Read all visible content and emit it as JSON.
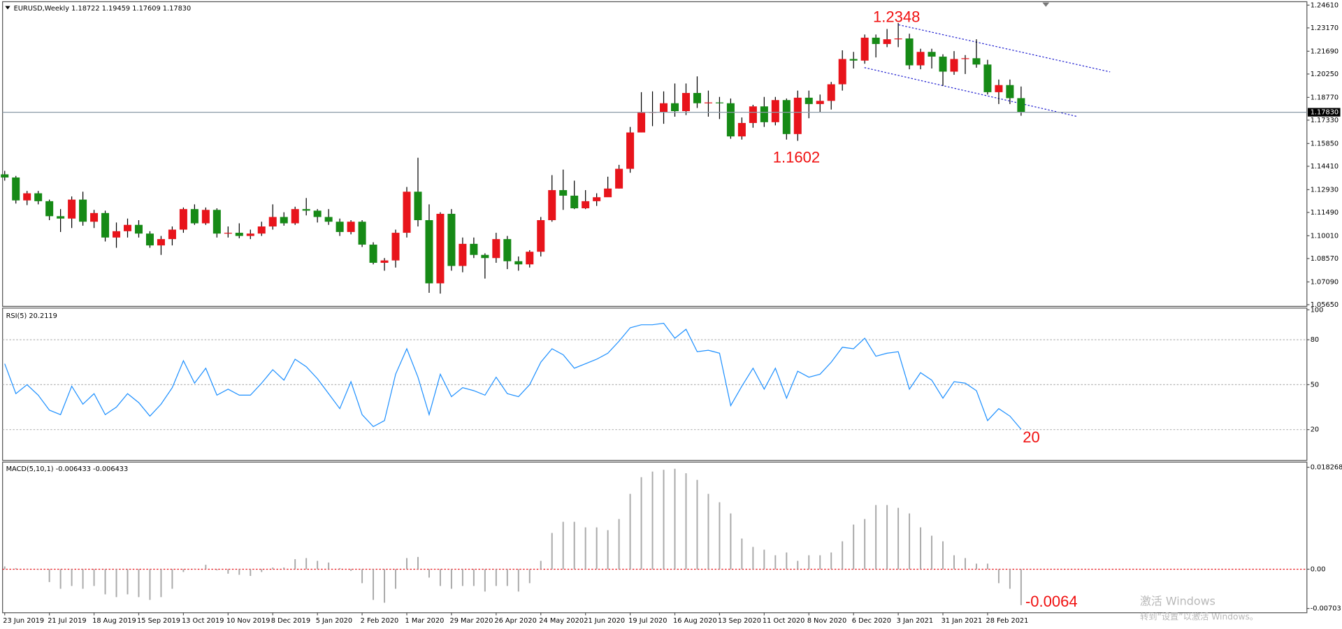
{
  "chart_data": [
    {
      "type": "candlestick",
      "title": "EURUSD,Weekly  1.18722 1.19459 1.17609 1.17830",
      "categories": [
        "23 Jun 2019",
        null,
        null,
        null,
        "21 Jul 2019",
        null,
        null,
        null,
        "18 Aug 2019",
        null,
        null,
        null,
        "15 Sep 2019",
        null,
        null,
        null,
        "13 Oct 2019",
        null,
        null,
        null,
        "10 Nov 2019",
        null,
        null,
        null,
        "8 Dec 2019",
        null,
        null,
        null,
        "5 Jan 2020",
        null,
        null,
        null,
        "2 Feb 2020",
        null,
        null,
        null,
        "1 Mar 2020",
        null,
        null,
        null,
        "29 Mar 2020",
        null,
        null,
        null,
        "26 Apr 2020",
        null,
        null,
        null,
        "24 May 2020",
        null,
        null,
        null,
        "21 Jun 2020",
        null,
        null,
        null,
        "19 Jul 2020",
        null,
        null,
        null,
        "16 Aug 2020",
        null,
        null,
        null,
        "13 Sep 2020",
        null,
        null,
        null,
        "11 Oct 2020",
        null,
        null,
        null,
        "8 Nov 2020",
        null,
        null,
        null,
        "6 Dec 2020",
        null,
        null,
        null,
        "3 Jan 2021",
        null,
        null,
        null,
        "31 Jan 2021",
        null,
        null,
        null,
        "28 Feb 2021",
        null,
        null,
        null
      ],
      "open": [
        1.139,
        1.137,
        1.1225,
        1.127,
        1.122,
        1.1125,
        1.111,
        1.123,
        1.109,
        1.1145,
        1.099,
        1.103,
        1.107,
        1.1015,
        1.094,
        1.098,
        1.104,
        1.117,
        1.108,
        1.1165,
        1.1015,
        1.102,
        1.1,
        1.1015,
        1.106,
        1.112,
        1.108,
        1.117,
        1.116,
        1.112,
        1.109,
        1.1025,
        1.109,
        1.0945,
        1.083,
        1.0845,
        1.102,
        1.128,
        1.11,
        1.07,
        1.114,
        1.081,
        1.095,
        1.088,
        1.086,
        1.098,
        1.084,
        1.082,
        1.09,
        1.11,
        1.129,
        1.1255,
        1.1175,
        1.122,
        1.1245,
        1.13,
        1.1425,
        1.1655,
        1.178,
        1.1785,
        1.184,
        1.179,
        1.1905,
        1.184,
        1.1845,
        1.184,
        1.163,
        1.1715,
        1.182,
        1.172,
        1.186,
        1.1645,
        1.1875,
        1.1835,
        1.1855,
        1.196,
        1.212,
        1.211,
        1.2255,
        1.2215,
        1.2245,
        1.225,
        1.208,
        1.2165,
        1.2135,
        1.204,
        1.212,
        1.2125,
        1.2085,
        1.191,
        1.1955,
        1.18722
      ],
      "high": [
        1.1412,
        1.138,
        1.1285,
        1.1285,
        1.123,
        1.117,
        1.125,
        1.128,
        1.1165,
        1.116,
        1.1085,
        1.111,
        1.11,
        1.103,
        1.1,
        1.106,
        1.118,
        1.12,
        1.118,
        1.1175,
        1.106,
        1.108,
        1.104,
        1.109,
        1.12,
        1.115,
        1.1185,
        1.124,
        1.117,
        1.117,
        1.111,
        1.11,
        1.11,
        1.096,
        1.086,
        1.104,
        1.131,
        1.1495,
        1.12,
        1.115,
        1.117,
        1.099,
        1.099,
        1.089,
        1.102,
        1.1,
        1.087,
        1.091,
        1.112,
        1.1385,
        1.142,
        1.135,
        1.129,
        1.127,
        1.1375,
        1.145,
        1.169,
        1.191,
        1.1915,
        1.1915,
        1.1965,
        1.1965,
        1.201,
        1.192,
        1.188,
        1.187,
        1.175,
        1.183,
        1.188,
        1.188,
        1.187,
        1.192,
        1.192,
        1.1895,
        1.1975,
        1.2175,
        1.2165,
        1.2275,
        1.2275,
        1.231,
        1.2348,
        1.228,
        1.2185,
        1.2185,
        1.215,
        1.217,
        1.2145,
        1.2245,
        1.2115,
        1.199,
        1.199,
        1.19459
      ],
      "low": [
        1.135,
        1.1205,
        1.1195,
        1.12,
        1.11,
        1.1025,
        1.105,
        1.1065,
        1.105,
        1.0965,
        1.0925,
        1.099,
        1.099,
        1.0925,
        1.088,
        1.094,
        1.102,
        1.107,
        1.107,
        1.099,
        1.099,
        1.0985,
        1.098,
        1.1,
        1.104,
        1.1065,
        1.107,
        1.113,
        1.1085,
        1.107,
        1.1,
        1.101,
        1.093,
        1.082,
        1.078,
        1.08,
        1.099,
        1.106,
        1.064,
        1.0635,
        1.078,
        1.077,
        1.086,
        1.073,
        1.083,
        1.079,
        1.078,
        1.08,
        1.087,
        1.109,
        1.1165,
        1.117,
        1.117,
        1.119,
        1.125,
        1.13,
        1.14,
        1.1655,
        1.1695,
        1.171,
        1.1755,
        1.1765,
        1.181,
        1.1755,
        1.174,
        1.1615,
        1.161,
        1.1685,
        1.169,
        1.17,
        1.161,
        1.1602,
        1.1745,
        1.1785,
        1.18,
        1.192,
        1.206,
        1.209,
        1.213,
        1.2195,
        1.2195,
        1.2055,
        1.2055,
        1.206,
        1.195,
        1.202,
        1.2025,
        1.2065,
        1.1895,
        1.1835,
        1.1835,
        1.17609
      ],
      "close": [
        1.137,
        1.1225,
        1.127,
        1.122,
        1.1125,
        1.111,
        1.123,
        1.109,
        1.1145,
        1.099,
        1.103,
        1.107,
        1.1015,
        1.094,
        1.098,
        1.104,
        1.117,
        1.108,
        1.1165,
        1.1015,
        1.102,
        1.1,
        1.1015,
        1.106,
        1.112,
        1.108,
        1.117,
        1.116,
        1.112,
        1.109,
        1.1025,
        1.109,
        1.0945,
        1.083,
        1.0845,
        1.102,
        1.128,
        1.11,
        1.07,
        1.114,
        1.081,
        1.095,
        1.088,
        1.086,
        1.098,
        1.084,
        1.082,
        1.09,
        1.11,
        1.129,
        1.1255,
        1.1175,
        1.122,
        1.1245,
        1.13,
        1.1425,
        1.1655,
        1.178,
        1.1785,
        1.184,
        1.179,
        1.1905,
        1.184,
        1.1845,
        1.184,
        1.163,
        1.1715,
        1.182,
        1.172,
        1.186,
        1.1645,
        1.1875,
        1.1835,
        1.1855,
        1.196,
        1.212,
        1.211,
        1.2255,
        1.2215,
        1.2245,
        1.225,
        1.208,
        1.2165,
        1.2135,
        1.204,
        1.212,
        1.2125,
        1.2085,
        1.191,
        1.1955,
        1.18722,
        1.1783
      ],
      "up_color": "#e8141b",
      "down_color": "#168a16",
      "ylim": [
        1.0565,
        1.2461
      ],
      "yticks": [
        {
          "value": 1.2461,
          "label": "1.24610"
        },
        {
          "value": 1.2317,
          "label": "1.23170"
        },
        {
          "value": 1.2169,
          "label": "1.21690"
        },
        {
          "value": 1.2025,
          "label": "1.20250"
        },
        {
          "value": 1.1877,
          "label": "1.18770"
        },
        {
          "value": 1.1733,
          "label": "1.17330"
        },
        {
          "value": 1.1585,
          "label": "1.15850"
        },
        {
          "value": 1.1441,
          "label": "1.14410"
        },
        {
          "value": 1.1293,
          "label": "1.12930"
        },
        {
          "value": 1.1149,
          "label": "1.11490"
        },
        {
          "value": 1.1001,
          "label": "1.10010"
        },
        {
          "value": 1.0857,
          "label": "1.08570"
        },
        {
          "value": 1.0709,
          "label": "1.07090"
        },
        {
          "value": 1.0565,
          "label": "1.05650"
        }
      ],
      "bid_line": {
        "value": 1.1783,
        "label": "1.17830"
      },
      "annotations": [
        "1.2348",
        "1.1602"
      ]
    },
    {
      "type": "line",
      "title": "RSI(5) 20.2119",
      "color": "#1e90ff",
      "grid_color": "#b4b4b4",
      "values": [
        64,
        44,
        50,
        43,
        33,
        30,
        49,
        37,
        44,
        30,
        35,
        44,
        38,
        29,
        37,
        48,
        66,
        51,
        61,
        43,
        47,
        43,
        43,
        51,
        60,
        53,
        67,
        62,
        54,
        44,
        34,
        52,
        30,
        22,
        26,
        57,
        74,
        55,
        30,
        57,
        42,
        48,
        46,
        43,
        55,
        44,
        42,
        50,
        65,
        74,
        70,
        61,
        64,
        67,
        71,
        79,
        88,
        90,
        90,
        91,
        81,
        87,
        72,
        73,
        71,
        36,
        49,
        61,
        47,
        61,
        41,
        59,
        55,
        57,
        65,
        75,
        74,
        81,
        69,
        71,
        72,
        47,
        58,
        53,
        41,
        52,
        51,
        46,
        26,
        34,
        29,
        20.2119
      ],
      "ylim": [
        0,
        100
      ],
      "yticks": [
        100,
        80,
        50,
        20
      ],
      "annotations": [
        "20"
      ]
    },
    {
      "type": "bar",
      "title": "MACD(5,10,1) -0.006433 -0.006433",
      "color": "#a9a9a9",
      "grid_color": "#e8141b",
      "values": [
        0.0005,
        0.0002,
        0.0001,
        -0.0001,
        -0.0023,
        -0.0035,
        -0.003,
        -0.0035,
        -0.003,
        -0.0045,
        -0.005,
        -0.0045,
        -0.005,
        -0.0055,
        -0.005,
        -0.0035,
        -0.0005,
        0.0001,
        0.0008,
        -0.0002,
        -0.0008,
        -0.001,
        -0.0012,
        -0.0005,
        0.0003,
        0.0003,
        0.0018,
        0.002,
        0.0015,
        0.0012,
        0.0002,
        -0.0003,
        -0.0025,
        -0.0055,
        -0.006,
        -0.0035,
        0.002,
        0.0022,
        -0.0015,
        -0.003,
        -0.0035,
        -0.003,
        -0.003,
        -0.004,
        -0.003,
        -0.003,
        -0.004,
        -0.0025,
        0.0015,
        0.0065,
        0.0085,
        0.0085,
        0.0075,
        0.0075,
        0.007,
        0.009,
        0.0135,
        0.0165,
        0.0175,
        0.0178,
        0.018,
        0.0172,
        0.016,
        0.0135,
        0.012,
        0.01,
        0.0055,
        0.004,
        0.0035,
        0.0025,
        0.003,
        0.0015,
        0.0025,
        0.0025,
        0.003,
        0.005,
        0.008,
        0.009,
        0.0115,
        0.0115,
        0.011,
        0.01,
        0.0075,
        0.006,
        0.005,
        0.0025,
        0.002,
        0.001,
        0.001,
        -0.0025,
        -0.0035,
        -0.006433
      ],
      "ylim": [
        -0.00703,
        0.018268
      ],
      "yticks": [
        0.018268,
        {
          "value": 0,
          "label": "0.00"
        },
        -0.00703
      ],
      "annotations": [
        "-0.0064"
      ]
    }
  ],
  "watermark": [
    "激活 Windows",
    "转到“设置”以激活 Windows。"
  ]
}
